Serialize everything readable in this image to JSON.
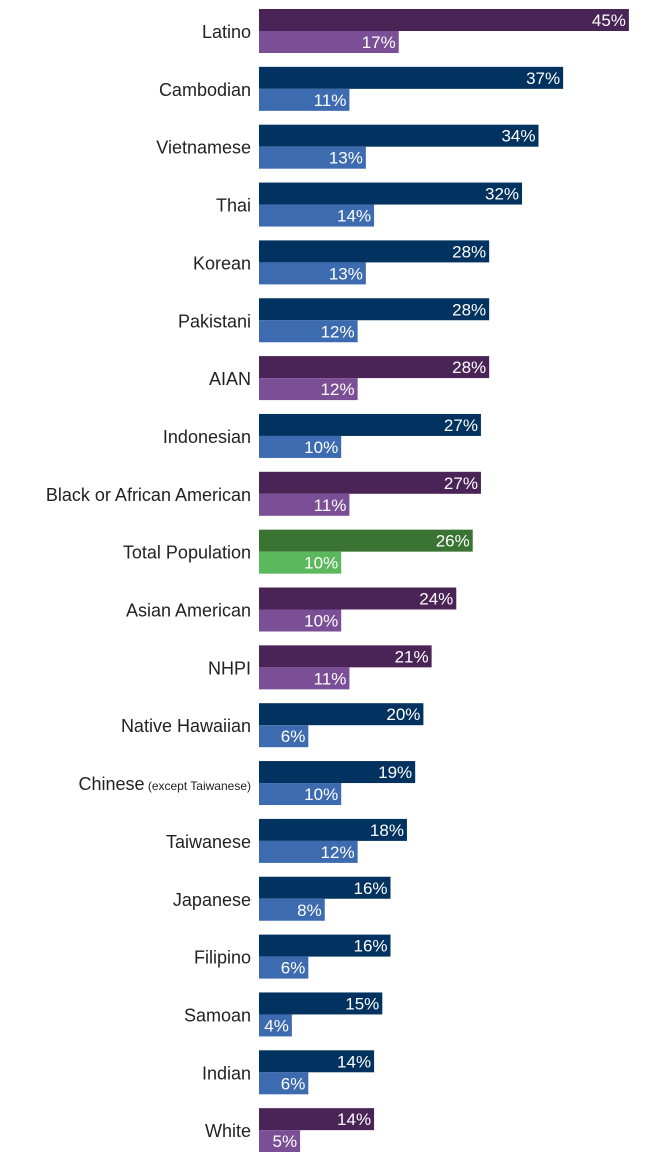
{
  "chart_data": {
    "type": "bar",
    "orientation": "horizontal",
    "value_format": "{v}%",
    "categories": [
      {
        "label": "Latino",
        "note": "",
        "group": "purple",
        "values": [
          45,
          17
        ]
      },
      {
        "label": "Cambodian",
        "note": "",
        "group": "blue",
        "values": [
          37,
          11
        ]
      },
      {
        "label": "Vietnamese",
        "note": "",
        "group": "blue",
        "values": [
          34,
          13
        ]
      },
      {
        "label": "Thai",
        "note": "",
        "group": "blue",
        "values": [
          32,
          14
        ]
      },
      {
        "label": "Korean",
        "note": "",
        "group": "blue",
        "values": [
          28,
          13
        ]
      },
      {
        "label": "Pakistani",
        "note": "",
        "group": "blue",
        "values": [
          28,
          12
        ]
      },
      {
        "label": "AIAN",
        "note": "",
        "group": "purple",
        "values": [
          28,
          12
        ]
      },
      {
        "label": "Indonesian",
        "note": "",
        "group": "blue",
        "values": [
          27,
          10
        ]
      },
      {
        "label": "Black or African American",
        "note": "",
        "group": "purple",
        "values": [
          27,
          11
        ]
      },
      {
        "label": "Total Population",
        "note": "",
        "group": "green",
        "values": [
          26,
          10
        ]
      },
      {
        "label": "Asian American",
        "note": "",
        "group": "purple",
        "values": [
          24,
          10
        ]
      },
      {
        "label": "NHPI",
        "note": "",
        "group": "purple",
        "values": [
          21,
          11
        ]
      },
      {
        "label": "Native Hawaiian",
        "note": "",
        "group": "blue",
        "values": [
          20,
          6
        ]
      },
      {
        "label": "Chinese",
        "note": "(except Taiwanese)",
        "group": "blue",
        "values": [
          19,
          10
        ]
      },
      {
        "label": "Taiwanese",
        "note": "",
        "group": "blue",
        "values": [
          18,
          12
        ]
      },
      {
        "label": "Japanese",
        "note": "",
        "group": "blue",
        "values": [
          16,
          8
        ]
      },
      {
        "label": "Filipino",
        "note": "",
        "group": "blue",
        "values": [
          16,
          6
        ]
      },
      {
        "label": "Samoan",
        "note": "",
        "group": "blue",
        "values": [
          15,
          4
        ]
      },
      {
        "label": "Indian",
        "note": "",
        "group": "blue",
        "values": [
          14,
          6
        ]
      },
      {
        "label": "White",
        "note": "",
        "group": "purple",
        "values": [
          14,
          5
        ]
      }
    ],
    "colors": {
      "purple": [
        "#4a2457",
        "#7b4f96"
      ],
      "blue": [
        "#02325f",
        "#3d6bb0"
      ],
      "green": [
        "#3a7433",
        "#5cb85c"
      ]
    },
    "xlim": [
      0,
      45
    ],
    "grid": false,
    "legend": "none"
  }
}
